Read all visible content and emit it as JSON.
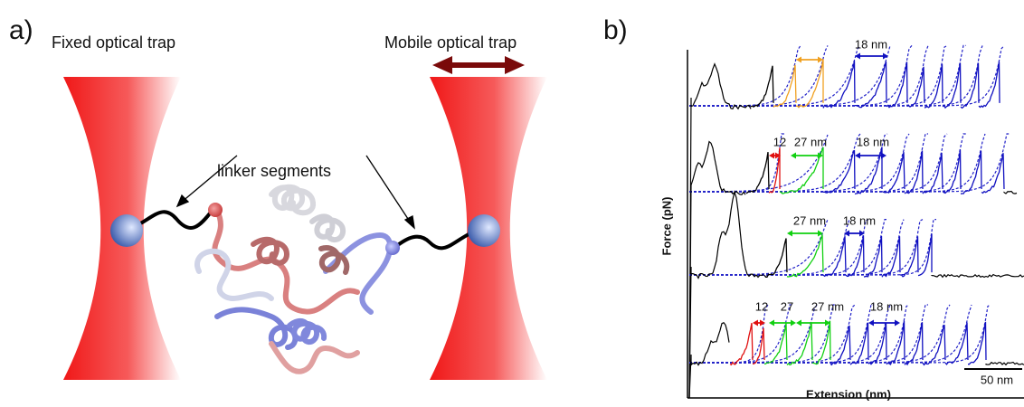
{
  "panel_a": {
    "label": "a)",
    "left_trap": "Fixed optical trap",
    "right_trap": "Mobile optical trap",
    "linker_label": "linker segments"
  },
  "panel_b": {
    "label": "b)",
    "y_axis_label": "Force (pN)",
    "x_axis_label": "Extension (nm)",
    "scale_bar": "50 nm",
    "traces": [
      {
        "annotations": [
          "18 nm"
        ]
      },
      {
        "annotations": [
          "12",
          "27 nm",
          "18 nm"
        ]
      },
      {
        "annotations": [
          "27 nm",
          "18 nm"
        ]
      },
      {
        "annotations": [
          "12",
          "27",
          "27 nm",
          "18 nm"
        ]
      }
    ]
  }
}
